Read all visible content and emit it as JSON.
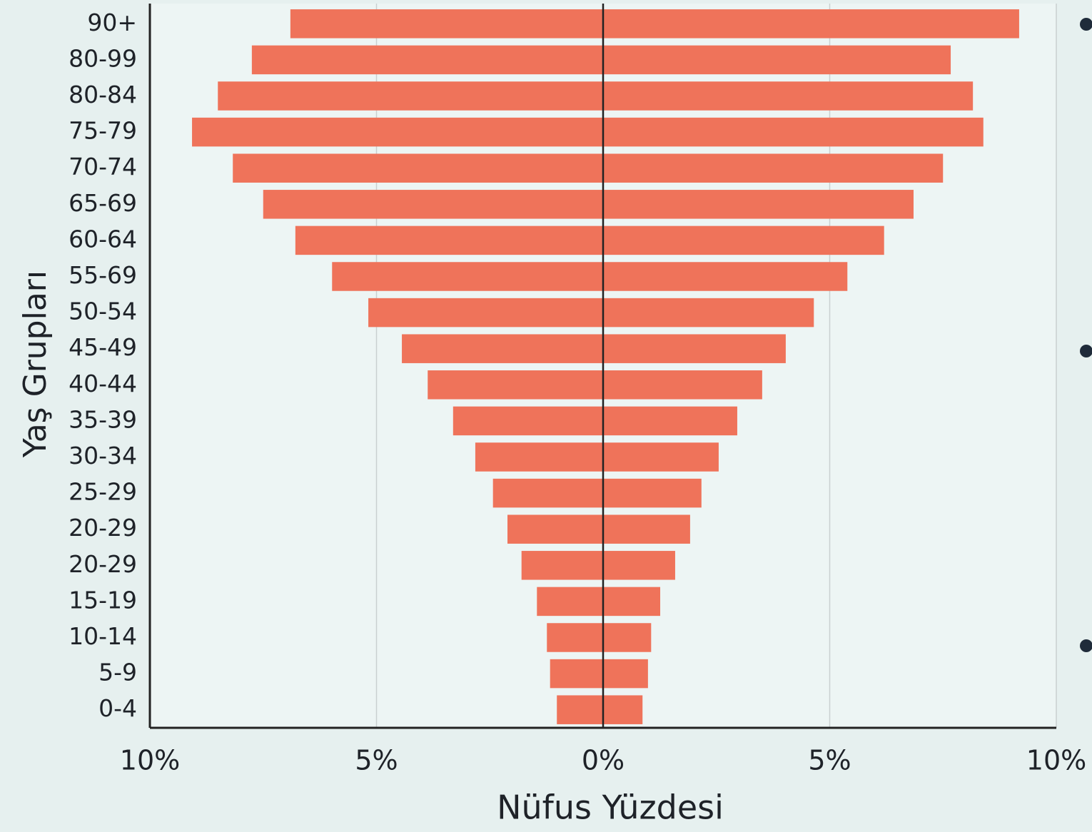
{
  "chart_data": {
    "type": "bar",
    "orientation": "horizontal",
    "y_label": "Yaş Grupları",
    "x_label": "Nüfus Yüzdesi",
    "categories": [
      "90+",
      "80-99",
      "80-84",
      "75-79",
      "70-74",
      "65-69",
      "60-64",
      "55-69",
      "50-54",
      "45-49",
      "40-44",
      "35-39",
      "30-34",
      "25-29",
      "20-29",
      "20-29",
      "15-19",
      "10-14",
      "5-9",
      "0-4"
    ],
    "series": [
      {
        "color": "#ef735a",
        "values": [
          -6.9,
          -7.75,
          -8.5,
          -9.07,
          -8.17,
          -7.5,
          -6.79,
          -5.98,
          -5.18,
          -4.44,
          -3.87,
          -3.31,
          -2.82,
          -2.43,
          -2.11,
          -1.8,
          -1.46,
          -1.24,
          -1.17,
          -1.02
        ]
      },
      {
        "color": "#ef735a",
        "values": [
          9.18,
          7.67,
          8.16,
          8.39,
          7.5,
          6.85,
          6.2,
          5.39,
          4.65,
          4.03,
          3.51,
          2.96,
          2.55,
          2.17,
          1.92,
          1.59,
          1.26,
          1.06,
          0.99,
          0.87
        ]
      }
    ],
    "xlim": [
      -10,
      10
    ],
    "xticks": [
      {
        "value": -10,
        "label": "10%"
      },
      {
        "value": -5,
        "label": "5%"
      },
      {
        "value": 0,
        "label": "0%"
      },
      {
        "value": 5,
        "label": "5%"
      },
      {
        "value": 10,
        "label": "10%"
      }
    ],
    "grid": true
  }
}
